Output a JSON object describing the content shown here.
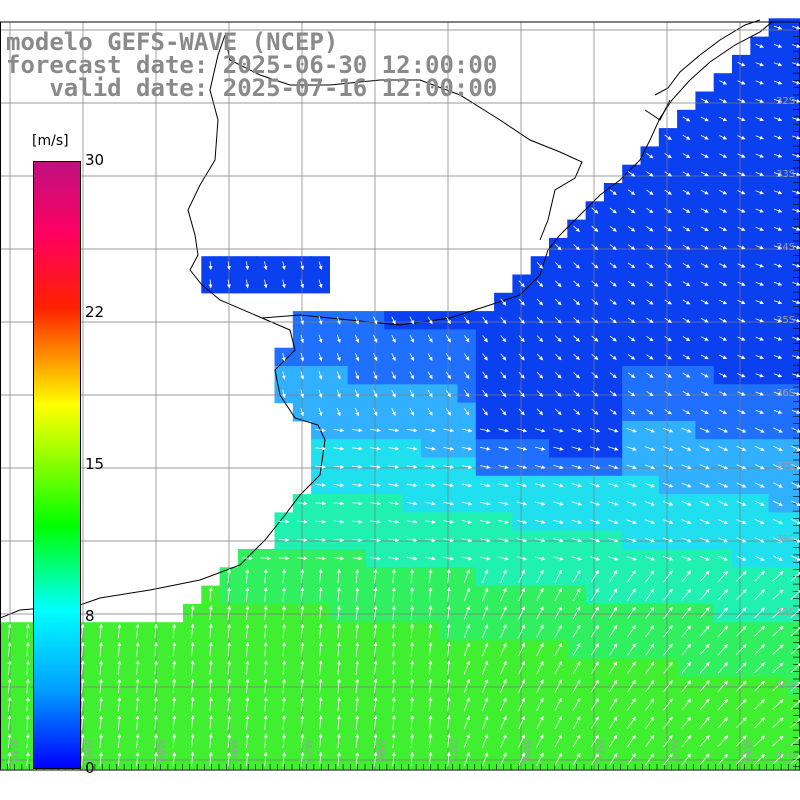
{
  "title": {
    "line1": "modelo GEFS-WAVE (NCEP)",
    "line2": "forecast date: 2025-06-30 12:00:00",
    "line3": "   valid date: 2025-07-16 12:00:00"
  },
  "colorbar": {
    "unit": "[m/s]",
    "ticks": [
      "30",
      "22",
      "15",
      "8",
      "0"
    ],
    "colors": [
      "#0000ff",
      "#00a0ff",
      "#00ffff",
      "#00ff00",
      "#ffff00",
      "#ff2000",
      "#c01080"
    ]
  },
  "map": {
    "lat_labels": [
      "32S",
      "33S",
      "34S",
      "35S",
      "36S",
      "37S",
      "38S",
      "39S",
      "40S",
      "41S"
    ],
    "lon_labels": [
      "61W",
      "60W",
      "59W",
      "58W",
      "57W",
      "56W",
      "55W",
      "54W",
      "53W",
      "52W",
      "51W"
    ]
  }
}
